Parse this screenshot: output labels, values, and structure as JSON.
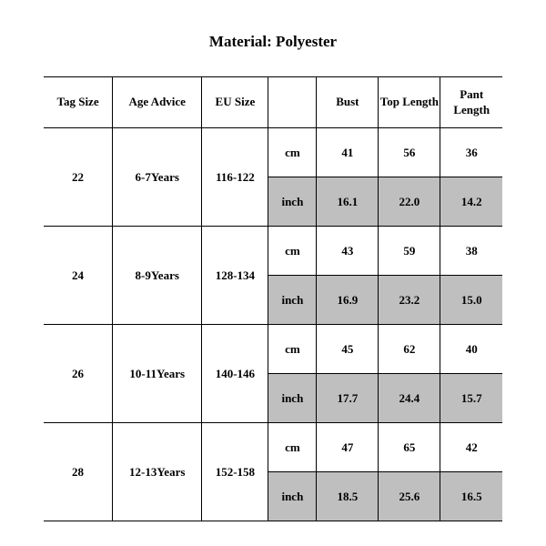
{
  "title": "Material: Polyester",
  "colors": {
    "shade_bg": "#bfbfbf",
    "border": "#000000",
    "text": "#000000",
    "page_bg": "#ffffff"
  },
  "columns": {
    "tag_size": "Tag Size",
    "age_advice": "Age Advice",
    "eu_size": "EU Size",
    "unit": "",
    "bust": "Bust",
    "top_length": "Top Length",
    "pant_length": "Pant Length"
  },
  "units": {
    "cm": "cm",
    "inch": "inch"
  },
  "rows": [
    {
      "tag_size": "22",
      "age_advice": "6-7Years",
      "eu_size": "116-122",
      "cm": {
        "bust": "41",
        "top_length": "56",
        "pant_length": "36"
      },
      "inch": {
        "bust": "16.1",
        "top_length": "22.0",
        "pant_length": "14.2"
      }
    },
    {
      "tag_size": "24",
      "age_advice": "8-9Years",
      "eu_size": "128-134",
      "cm": {
        "bust": "43",
        "top_length": "59",
        "pant_length": "38"
      },
      "inch": {
        "bust": "16.9",
        "top_length": "23.2",
        "pant_length": "15.0"
      }
    },
    {
      "tag_size": "26",
      "age_advice": "10-11Years",
      "eu_size": "140-146",
      "cm": {
        "bust": "45",
        "top_length": "62",
        "pant_length": "40"
      },
      "inch": {
        "bust": "17.7",
        "top_length": "24.4",
        "pant_length": "15.7"
      }
    },
    {
      "tag_size": "28",
      "age_advice": "12-13Years",
      "eu_size": "152-158",
      "cm": {
        "bust": "47",
        "top_length": "65",
        "pant_length": "42"
      },
      "inch": {
        "bust": "18.5",
        "top_length": "25.6",
        "pant_length": "16.5"
      }
    }
  ]
}
